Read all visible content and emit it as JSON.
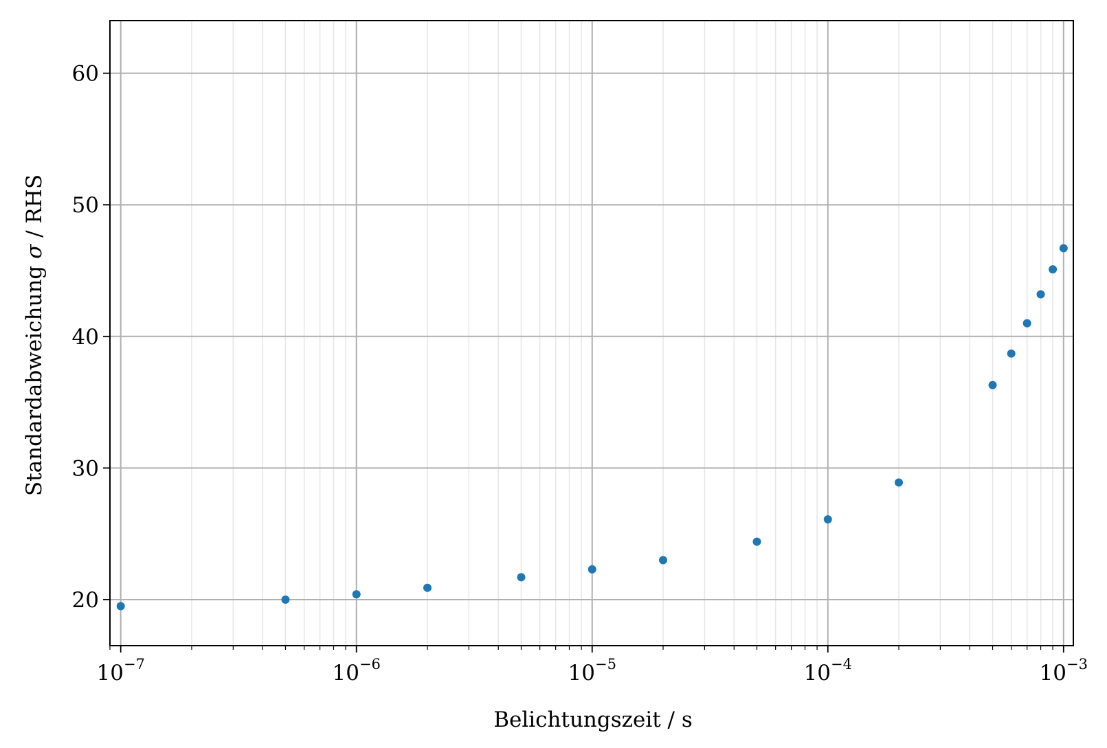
{
  "chart_data": {
    "type": "scatter",
    "xlabel": "Belichtungszeit / s",
    "ylabel_parts": [
      "Standardabweichung ",
      "σ",
      " / RHS"
    ],
    "xscale": "log",
    "xlim": [
      9e-08,
      0.0011
    ],
    "ylim": [
      16.5,
      64
    ],
    "x_ticks": [
      {
        "value": 1e-07,
        "base": "10",
        "exp": "−7"
      },
      {
        "value": 1e-06,
        "base": "10",
        "exp": "−6"
      },
      {
        "value": 1e-05,
        "base": "10",
        "exp": "−5"
      },
      {
        "value": 0.0001,
        "base": "10",
        "exp": "−4"
      },
      {
        "value": 0.001,
        "base": "10",
        "exp": "−3"
      }
    ],
    "y_ticks": [
      20,
      30,
      40,
      50,
      60
    ],
    "grid": "major and minor",
    "marker_color": "#1f77b4",
    "points": [
      {
        "x": 1e-07,
        "y": 19.5
      },
      {
        "x": 5e-07,
        "y": 20.0
      },
      {
        "x": 1e-06,
        "y": 20.4
      },
      {
        "x": 2e-06,
        "y": 20.9
      },
      {
        "x": 5e-06,
        "y": 21.7
      },
      {
        "x": 1e-05,
        "y": 22.3
      },
      {
        "x": 2e-05,
        "y": 23.0
      },
      {
        "x": 5e-05,
        "y": 24.4
      },
      {
        "x": 0.0001,
        "y": 26.1
      },
      {
        "x": 0.0002,
        "y": 28.9
      },
      {
        "x": 0.0005,
        "y": 36.3
      },
      {
        "x": 0.0006,
        "y": 38.7
      },
      {
        "x": 0.0007,
        "y": 41.0
      },
      {
        "x": 0.0008,
        "y": 43.2
      },
      {
        "x": 0.0009,
        "y": 45.1
      },
      {
        "x": 0.001,
        "y": 46.7
      }
    ]
  }
}
